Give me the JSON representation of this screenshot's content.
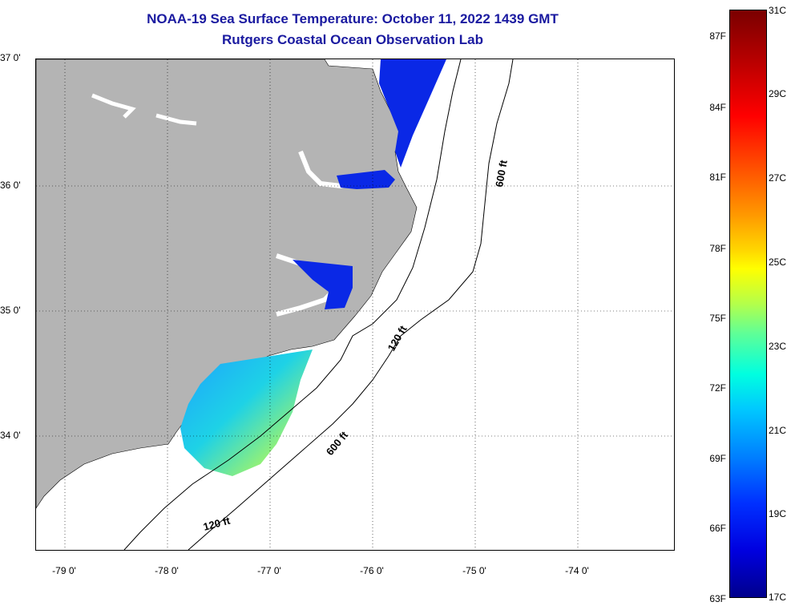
{
  "title_line1": "NOAA-19 Sea Surface Temperature:  October 11, 2022 1439 GMT",
  "title_line2": "Rutgers Coastal Ocean Observation Lab",
  "map": {
    "lat_labels": [
      "37 0'",
      "36 0'",
      "35 0'",
      "34 0'"
    ],
    "lon_labels": [
      "-79 0'",
      "-78 0'",
      "-77 0'",
      "-76 0'",
      "-75 0'",
      "-74 0'"
    ],
    "depth_labels": [
      "600 ft",
      "120 ft",
      "600 ft",
      "120 ft"
    ],
    "colors": {
      "land": "#b4b4b4",
      "sea": "#ffffff",
      "cold_sst": "#0a28e6"
    }
  },
  "colorbar": {
    "fahrenheit": [
      "87F",
      "84F",
      "81F",
      "78F",
      "75F",
      "72F",
      "69F",
      "66F",
      "63F"
    ],
    "celsius": [
      "31C",
      "29C",
      "27C",
      "25C",
      "23C",
      "21C",
      "19C",
      "17C"
    ]
  }
}
